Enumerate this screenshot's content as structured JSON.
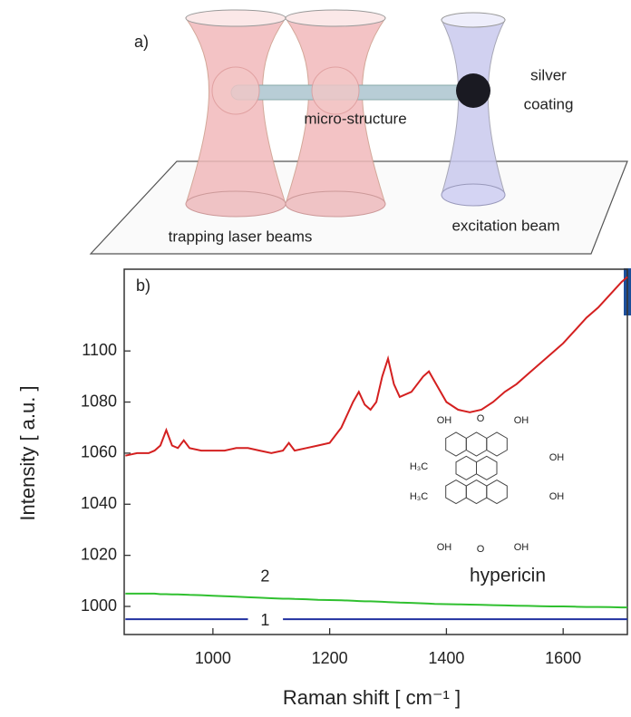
{
  "diagram": {
    "panel_label": "a)",
    "labels": [
      "silver",
      "coating",
      "micro-structure",
      "trapping laser beams",
      "excitation beam"
    ]
  },
  "chart_data": {
    "type": "line",
    "panel_label": "b)",
    "x_label": "Raman shift [ cm⁻¹ ]",
    "y_label": "Intensity [ a.u. ]",
    "x": [
      850,
      870,
      890,
      900,
      910,
      920,
      930,
      940,
      950,
      960,
      980,
      1000,
      1020,
      1040,
      1060,
      1080,
      1100,
      1120,
      1130,
      1140,
      1160,
      1180,
      1200,
      1220,
      1240,
      1250,
      1260,
      1270,
      1280,
      1290,
      1300,
      1310,
      1320,
      1340,
      1360,
      1370,
      1380,
      1400,
      1420,
      1440,
      1460,
      1480,
      1500,
      1520,
      1540,
      1560,
      1580,
      1600,
      1620,
      1640,
      1660,
      1680,
      1700,
      1710
    ],
    "series": [
      {
        "color": "#d42020",
        "values": [
          1059,
          1060,
          1060,
          1061,
          1063,
          1069,
          1063,
          1062,
          1065,
          1062,
          1061,
          1061,
          1061,
          1062,
          1062,
          1061,
          1060,
          1061,
          1064,
          1061,
          1062,
          1063,
          1064,
          1070,
          1080,
          1084,
          1079,
          1077,
          1080,
          1090,
          1097,
          1087,
          1082,
          1084,
          1090,
          1092,
          1088,
          1080,
          1077,
          1076,
          1077,
          1080,
          1084,
          1087,
          1091,
          1095,
          1099,
          1103,
          1108,
          1113,
          1117,
          1122,
          1127,
          1129
        ]
      },
      {
        "name": "2",
        "color": "#30c030",
        "values": [
          1005,
          1005,
          1005,
          1005,
          1004.8,
          1004.8,
          1004.7,
          1004.7,
          1004.6,
          1004.5,
          1004.4,
          1004.2,
          1004,
          1003.8,
          1003.6,
          1003.4,
          1003.2,
          1003,
          1003,
          1002.9,
          1002.8,
          1002.6,
          1002.5,
          1002.4,
          1002.2,
          1002.1,
          1002,
          1002,
          1001.9,
          1001.8,
          1001.7,
          1001.6,
          1001.5,
          1001.4,
          1001.2,
          1001.1,
          1001,
          1000.9,
          1000.8,
          1000.7,
          1000.6,
          1000.5,
          1000.4,
          1000.3,
          1000.2,
          1000.1,
          1000,
          1000,
          999.9,
          999.8,
          999.8,
          999.7,
          999.6,
          999.6
        ]
      },
      {
        "name": "1",
        "color": "#2030a0",
        "values": [
          995,
          995,
          995,
          995,
          995,
          995,
          995,
          995,
          995,
          995,
          995,
          995,
          995,
          995,
          995,
          null,
          null,
          995,
          995,
          995,
          995,
          995,
          995,
          995,
          995,
          995,
          995,
          995,
          995,
          995,
          995,
          995,
          995,
          995,
          995,
          995,
          995,
          995,
          995,
          995,
          995,
          995,
          995,
          995,
          995,
          995,
          995,
          995,
          995,
          995,
          995,
          995,
          995,
          995
        ]
      }
    ],
    "xlim": [
      848,
      1710
    ],
    "ylim": [
      989,
      1132
    ],
    "xticks": [
      1000,
      1200,
      1400,
      1600
    ],
    "yticks": [
      1000,
      1020,
      1040,
      1060,
      1080,
      1100
    ],
    "inset": {
      "atoms": [
        "OH",
        "O",
        "OH",
        "OH",
        "OH",
        "H₃C",
        "H₃C",
        "OH",
        "O",
        "OH"
      ],
      "name": "hypericin"
    }
  }
}
